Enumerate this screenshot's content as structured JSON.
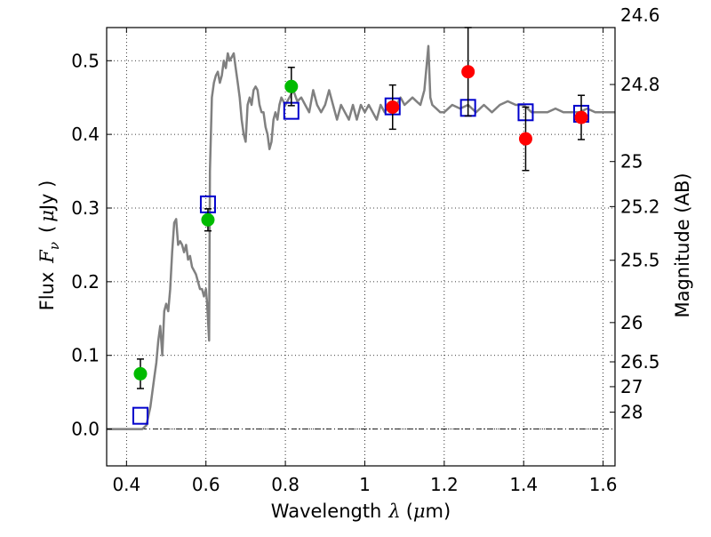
{
  "chart_data": {
    "type": "scatter",
    "xlabel_prefix": "Wavelength",
    "xlabel_symbol": "λ",
    "xlabel_unit_open": "(",
    "xlabel_unit_mu": "μ",
    "xlabel_unit_rest": "m)",
    "ylabel_prefix": "Flux",
    "ylabel_symbol": "F",
    "ylabel_subscript": "ν",
    "ylabel_unit_open": "(",
    "ylabel_unit_mu": "μ",
    "ylabel_unit_rest": "Jy )",
    "y2label": "Magnitude (AB)",
    "xlim": [
      0.35,
      1.63
    ],
    "ylim": [
      -0.05,
      0.545
    ],
    "grid": true,
    "zero_line": true,
    "x_ticks": [
      {
        "value": 0.4,
        "label": "0.4"
      },
      {
        "value": 0.6,
        "label": "0.6"
      },
      {
        "value": 0.8,
        "label": "0.8"
      },
      {
        "value": 1.0,
        "label": "1"
      },
      {
        "value": 1.2,
        "label": "1.2"
      },
      {
        "value": 1.4,
        "label": "1.4"
      },
      {
        "value": 1.6,
        "label": "1.6"
      }
    ],
    "y_ticks": [
      {
        "value": 0.0,
        "label": "0.0"
      },
      {
        "value": 0.1,
        "label": "0.1"
      },
      {
        "value": 0.2,
        "label": "0.2"
      },
      {
        "value": 0.3,
        "label": "0.3"
      },
      {
        "value": 0.4,
        "label": "0.4"
      },
      {
        "value": 0.5,
        "label": "0.5"
      }
    ],
    "y2_ticks": [
      {
        "flux": 0.562,
        "label": "24.6"
      },
      {
        "flux": 0.4677,
        "label": "24.8"
      },
      {
        "flux": 0.3631,
        "label": "25"
      },
      {
        "flux": 0.302,
        "label": "25.2"
      },
      {
        "flux": 0.2291,
        "label": "25.5"
      },
      {
        "flux": 0.1445,
        "label": "26"
      },
      {
        "flux": 0.0912,
        "label": "26.5"
      },
      {
        "flux": 0.0575,
        "label": "27"
      },
      {
        "flux": 0.0229,
        "label": "28"
      }
    ],
    "series": [
      {
        "kind": "model_spectrum",
        "color": "#808080",
        "points": [
          [
            0.35,
            0.0
          ],
          [
            0.44,
            0.0
          ],
          [
            0.45,
            0.005
          ],
          [
            0.46,
            0.03
          ],
          [
            0.47,
            0.07
          ],
          [
            0.475,
            0.09
          ],
          [
            0.48,
            0.12
          ],
          [
            0.485,
            0.14
          ],
          [
            0.49,
            0.1
          ],
          [
            0.495,
            0.16
          ],
          [
            0.5,
            0.17
          ],
          [
            0.505,
            0.16
          ],
          [
            0.51,
            0.19
          ],
          [
            0.515,
            0.24
          ],
          [
            0.52,
            0.28
          ],
          [
            0.525,
            0.285
          ],
          [
            0.53,
            0.25
          ],
          [
            0.535,
            0.255
          ],
          [
            0.54,
            0.25
          ],
          [
            0.545,
            0.24
          ],
          [
            0.55,
            0.25
          ],
          [
            0.555,
            0.23
          ],
          [
            0.56,
            0.235
          ],
          [
            0.565,
            0.22
          ],
          [
            0.57,
            0.215
          ],
          [
            0.575,
            0.21
          ],
          [
            0.58,
            0.2
          ],
          [
            0.585,
            0.19
          ],
          [
            0.59,
            0.19
          ],
          [
            0.595,
            0.18
          ],
          [
            0.6,
            0.19
          ],
          [
            0.603,
            0.17
          ],
          [
            0.606,
            0.14
          ],
          [
            0.608,
            0.12
          ],
          [
            0.61,
            0.35
          ],
          [
            0.615,
            0.45
          ],
          [
            0.62,
            0.47
          ],
          [
            0.625,
            0.48
          ],
          [
            0.63,
            0.485
          ],
          [
            0.635,
            0.47
          ],
          [
            0.64,
            0.48
          ],
          [
            0.645,
            0.5
          ],
          [
            0.65,
            0.49
          ],
          [
            0.655,
            0.51
          ],
          [
            0.66,
            0.5
          ],
          [
            0.665,
            0.505
          ],
          [
            0.67,
            0.51
          ],
          [
            0.675,
            0.49
          ],
          [
            0.68,
            0.47
          ],
          [
            0.685,
            0.45
          ],
          [
            0.69,
            0.42
          ],
          [
            0.695,
            0.4
          ],
          [
            0.7,
            0.39
          ],
          [
            0.705,
            0.44
          ],
          [
            0.71,
            0.45
          ],
          [
            0.715,
            0.44
          ],
          [
            0.72,
            0.46
          ],
          [
            0.725,
            0.465
          ],
          [
            0.73,
            0.46
          ],
          [
            0.735,
            0.44
          ],
          [
            0.74,
            0.43
          ],
          [
            0.745,
            0.43
          ],
          [
            0.75,
            0.41
          ],
          [
            0.755,
            0.4
          ],
          [
            0.76,
            0.38
          ],
          [
            0.765,
            0.39
          ],
          [
            0.77,
            0.42
          ],
          [
            0.775,
            0.43
          ],
          [
            0.78,
            0.42
          ],
          [
            0.785,
            0.44
          ],
          [
            0.79,
            0.45
          ],
          [
            0.8,
            0.44
          ],
          [
            0.81,
            0.45
          ],
          [
            0.82,
            0.46
          ],
          [
            0.83,
            0.445
          ],
          [
            0.84,
            0.45
          ],
          [
            0.85,
            0.44
          ],
          [
            0.86,
            0.43
          ],
          [
            0.87,
            0.46
          ],
          [
            0.88,
            0.44
          ],
          [
            0.89,
            0.43
          ],
          [
            0.9,
            0.44
          ],
          [
            0.91,
            0.46
          ],
          [
            0.92,
            0.44
          ],
          [
            0.93,
            0.42
          ],
          [
            0.94,
            0.44
          ],
          [
            0.95,
            0.43
          ],
          [
            0.96,
            0.42
          ],
          [
            0.97,
            0.44
          ],
          [
            0.98,
            0.42
          ],
          [
            0.99,
            0.44
          ],
          [
            1.0,
            0.43
          ],
          [
            1.01,
            0.44
          ],
          [
            1.02,
            0.43
          ],
          [
            1.03,
            0.42
          ],
          [
            1.04,
            0.44
          ],
          [
            1.05,
            0.43
          ],
          [
            1.06,
            0.44
          ],
          [
            1.07,
            0.43
          ],
          [
            1.08,
            0.44
          ],
          [
            1.09,
            0.45
          ],
          [
            1.1,
            0.44
          ],
          [
            1.11,
            0.445
          ],
          [
            1.12,
            0.45
          ],
          [
            1.13,
            0.445
          ],
          [
            1.14,
            0.44
          ],
          [
            1.15,
            0.46
          ],
          [
            1.16,
            0.52
          ],
          [
            1.165,
            0.45
          ],
          [
            1.17,
            0.44
          ],
          [
            1.18,
            0.435
          ],
          [
            1.19,
            0.43
          ],
          [
            1.2,
            0.43
          ],
          [
            1.22,
            0.44
          ],
          [
            1.24,
            0.435
          ],
          [
            1.26,
            0.44
          ],
          [
            1.28,
            0.43
          ],
          [
            1.3,
            0.44
          ],
          [
            1.32,
            0.43
          ],
          [
            1.34,
            0.44
          ],
          [
            1.36,
            0.445
          ],
          [
            1.38,
            0.44
          ],
          [
            1.4,
            0.44
          ],
          [
            1.42,
            0.43
          ],
          [
            1.44,
            0.43
          ],
          [
            1.46,
            0.43
          ],
          [
            1.48,
            0.435
          ],
          [
            1.5,
            0.43
          ],
          [
            1.52,
            0.43
          ],
          [
            1.54,
            0.43
          ],
          [
            1.56,
            0.435
          ],
          [
            1.58,
            0.43
          ],
          [
            1.6,
            0.43
          ],
          [
            1.63,
            0.43
          ]
        ]
      },
      {
        "kind": "model_bandpass",
        "marker": "open-square",
        "color": "#0000cc",
        "points": [
          [
            0.435,
            0.018
          ],
          [
            0.605,
            0.305
          ],
          [
            0.815,
            0.432
          ],
          [
            1.07,
            0.438
          ],
          [
            1.26,
            0.436
          ],
          [
            1.405,
            0.43
          ],
          [
            1.545,
            0.428
          ]
        ]
      },
      {
        "kind": "observed_green",
        "marker": "filled-circle",
        "color": "#00bb00",
        "points": [
          [
            0.435,
            0.075,
            0.02
          ],
          [
            0.605,
            0.284,
            0.015
          ],
          [
            0.815,
            0.465,
            0.026
          ]
        ]
      },
      {
        "kind": "observed_red",
        "marker": "filled-circle",
        "color": "#ff0000",
        "points": [
          [
            1.07,
            0.437,
            0.03
          ],
          [
            1.26,
            0.485,
            0.06
          ],
          [
            1.405,
            0.394,
            0.043
          ],
          [
            1.545,
            0.423,
            0.03
          ]
        ]
      }
    ]
  }
}
